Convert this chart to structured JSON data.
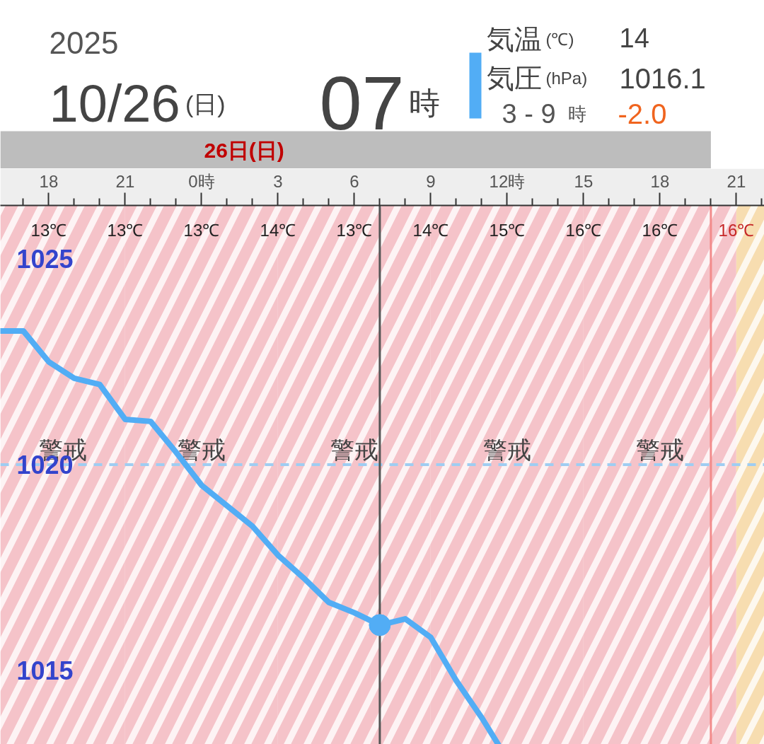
{
  "chart_data": {
    "type": "line",
    "annotations": [
      "2025",
      "10/26(日)",
      "07時",
      "気温(℃)",
      "14",
      "1016.1",
      "3 - 9 時",
      "-2.0",
      "26日(日)",
      "13℃",
      "13℃",
      "13℃",
      "14℃",
      "13℃",
      "14℃",
      "15℃",
      "16℃",
      "16℃",
      "16℃"
    ],
    "xlim": [
      "2025-10-25T16:06",
      "2025-10-26T22:06"
    ],
    "xticks": [
      {
        "value": "2025-10-25T17:00",
        "label": null
      },
      {
        "value": "2025-10-25T18:00",
        "label": "18"
      },
      {
        "value": "2025-10-25T19:00",
        "label": null
      },
      {
        "value": "2025-10-25T20:00",
        "label": null
      },
      {
        "value": "2025-10-25T21:00",
        "label": "21"
      },
      {
        "value": "2025-10-25T22:00",
        "label": null
      },
      {
        "value": "2025-10-25T23:00",
        "label": null
      },
      {
        "value": "2025-10-26T00:00",
        "label": "0時"
      },
      {
        "value": "2025-10-26T01:00",
        "label": null
      },
      {
        "value": "2025-10-26T02:00",
        "label": null
      },
      {
        "value": "2025-10-26T03:00",
        "label": "3"
      },
      {
        "value": "2025-10-26T04:00",
        "label": null
      },
      {
        "value": "2025-10-26T05:00",
        "label": null
      },
      {
        "value": "2025-10-26T06:00",
        "label": "6"
      },
      {
        "value": "2025-10-26T07:00",
        "label": null
      },
      {
        "value": "2025-10-26T08:00",
        "label": null
      },
      {
        "value": "2025-10-26T09:00",
        "label": "9"
      },
      {
        "value": "2025-10-26T10:00",
        "label": null
      },
      {
        "value": "2025-10-26T11:00",
        "label": null
      },
      {
        "value": "2025-10-26T12:00",
        "label": "12時"
      },
      {
        "value": "2025-10-26T13:00",
        "label": null
      },
      {
        "value": "2025-10-26T14:00",
        "label": null
      },
      {
        "value": "2025-10-26T15:00",
        "label": "15"
      },
      {
        "value": "2025-10-26T16:00",
        "label": null
      },
      {
        "value": "2025-10-26T17:00",
        "label": null
      },
      {
        "value": "2025-10-26T18:00",
        "label": "18"
      },
      {
        "value": "2025-10-26T19:00",
        "label": null
      },
      {
        "value": "2025-10-26T20:00",
        "label": null
      },
      {
        "value": "2025-10-26T21:00",
        "label": "21"
      },
      {
        "value": "2025-10-26T22:00",
        "label": null
      }
    ],
    "ylim": [
      1013.2,
      1026.3
    ],
    "yticks": [
      1015,
      1020,
      1025
    ],
    "series": [
      {
        "name": "気圧(hPa)",
        "color": "#52adf5",
        "x": [
          "2025-10-25T16:06",
          "2025-10-25T17:00",
          "2025-10-25T18:00",
          "2025-10-25T19:00",
          "2025-10-25T20:00",
          "2025-10-25T21:00",
          "2025-10-25T22:00",
          "2025-10-25T23:00",
          "2025-10-26T00:00",
          "2025-10-26T01:00",
          "2025-10-26T02:00",
          "2025-10-26T03:00",
          "2025-10-26T04:00",
          "2025-10-26T05:00",
          "2025-10-26T06:00",
          "2025-10-26T07:00",
          "2025-10-26T08:00",
          "2025-10-26T09:00",
          "2025-10-26T10:00",
          "2025-10-26T11:00",
          "2025-10-26T11:39"
        ],
        "values": [
          1023.25,
          1023.25,
          1022.5,
          1022.1,
          1021.95,
          1021.1,
          1021.05,
          1020.3,
          1019.5,
          1019.0,
          1018.5,
          1017.8,
          1017.25,
          1016.65,
          1016.4,
          1016.1,
          1016.25,
          1015.8,
          1014.75,
          1013.85,
          1013.2
        ]
      },
      {
        "type": "scatter",
        "marker": "circle",
        "color": "#52adf5",
        "x": [
          "2025-10-26T07:00"
        ],
        "values": [
          1016.1
        ]
      }
    ],
    "ref_lines": [
      {
        "axis": "y",
        "value": 1020,
        "color": "#9fcdf2",
        "line_style": "dashed"
      },
      {
        "axis": "x",
        "value": "2025-10-26T07:00",
        "color": "#555555"
      },
      {
        "axis": "x",
        "value": "2025-10-26T20:00",
        "color": "#f28b8b"
      }
    ],
    "bands": [
      {
        "axis": "x",
        "from": "2025-10-25T16:06",
        "to": "2025-10-25T21:00",
        "label": "警戒",
        "color": "#f5c3c9"
      },
      {
        "axis": "x",
        "from": "2025-10-25T21:00",
        "to": "2025-10-26T03:00",
        "label": "警戒",
        "color": "#f5c3c9"
      },
      {
        "axis": "x",
        "from": "2025-10-26T03:00",
        "to": "2025-10-26T09:00",
        "label": "警戒",
        "color": "#f5c3c9"
      },
      {
        "axis": "x",
        "from": "2025-10-26T09:00",
        "to": "2025-10-26T15:00",
        "label": "警戒",
        "color": "#f5c3c9"
      },
      {
        "axis": "x",
        "from": "2025-10-26T15:00",
        "to": "2025-10-26T21:00",
        "label": "警戒",
        "color": "#f5c3c9"
      },
      {
        "axis": "x",
        "from": "2025-10-26T21:00",
        "to": "2025-10-26T22:06",
        "color": "#f7ddb0"
      }
    ],
    "legend": "top right",
    "line_style": "solid"
  }
}
